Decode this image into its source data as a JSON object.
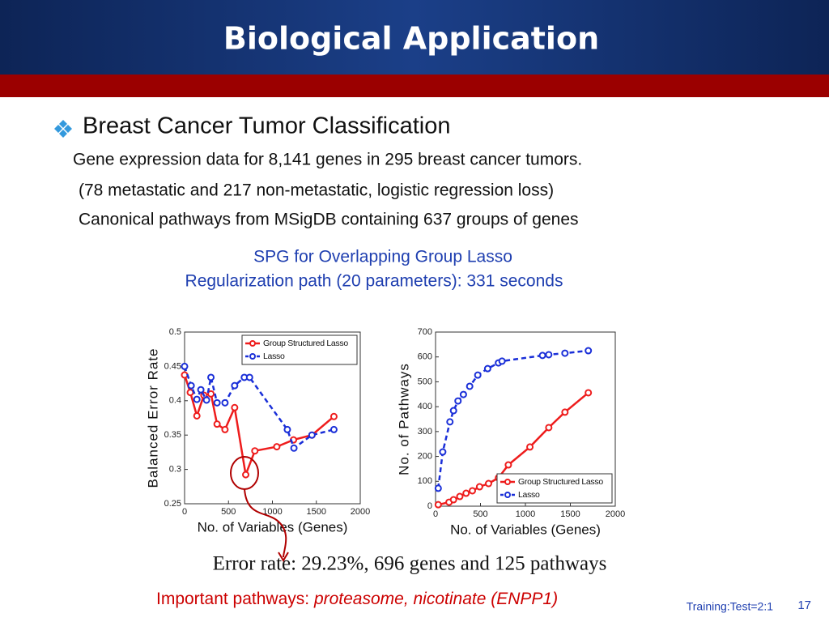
{
  "slide": {
    "title": "Biological Application",
    "bullet": "Breast Cancer Tumor Classification",
    "lines": [
      "Gene expression data for 8,141 genes in 295 breast cancer tumors.",
      "(78 metastatic and 217 non-metastatic, logistic regression loss)",
      "Canonical pathways from MSigDB containing 637 groups of genes"
    ],
    "subheading": [
      "SPG for Overlapping Group Lasso",
      "Regularization path (20 parameters): 331 seconds"
    ],
    "result": "Error rate: 29.23%, 696 genes and 125 pathways",
    "important_label": "Important pathways: ",
    "important_value": "proteasome, nicotinate (ENPP1)",
    "footnote": "Training:Test=2:1",
    "page_number": "17"
  },
  "chart_data": [
    {
      "type": "line",
      "xlabel": "No. of Variables (Genes)",
      "ylabel": "Balanced Error Rate",
      "xlim": [
        0,
        2000
      ],
      "xticks": [
        0,
        500,
        1000,
        1500,
        2000
      ],
      "ylim": [
        0.25,
        0.5
      ],
      "yticks": [
        0.25,
        0.3,
        0.35,
        0.4,
        0.45,
        0.5
      ],
      "legend": "upper right",
      "series": [
        {
          "name": "Group Structured Lasso",
          "color": "#ee1c1c",
          "dashed": false,
          "x": [
            0,
            65,
            140,
            220,
            300,
            370,
            460,
            570,
            696,
            800,
            1050,
            1240,
            1450,
            1700
          ],
          "values": [
            0.4375,
            0.412,
            0.378,
            0.408,
            0.41,
            0.366,
            0.358,
            0.39,
            0.2923,
            0.327,
            0.333,
            0.343,
            0.35,
            0.377
          ]
        },
        {
          "name": "Lasso",
          "color": "#1a2fd8",
          "dashed": true,
          "x": [
            0,
            75,
            140,
            185,
            250,
            300,
            370,
            460,
            570,
            680,
            740,
            1170,
            1245,
            1450,
            1700
          ],
          "values": [
            0.45,
            0.422,
            0.402,
            0.416,
            0.401,
            0.434,
            0.397,
            0.397,
            0.422,
            0.434,
            0.434,
            0.358,
            0.331,
            0.35,
            0.358
          ]
        }
      ]
    },
    {
      "type": "line",
      "xlabel": "No. of Variables (Genes)",
      "ylabel": "No. of Pathways",
      "xlim": [
        0,
        2000
      ],
      "xticks": [
        0,
        500,
        1000,
        1500,
        2000
      ],
      "ylim": [
        0,
        700
      ],
      "yticks": [
        0,
        100,
        200,
        300,
        400,
        500,
        600,
        700
      ],
      "legend": "lower right",
      "series": [
        {
          "name": "Group Structured Lasso",
          "color": "#ee1c1c",
          "dashed": false,
          "x": [
            30,
            150,
            200,
            270,
            340,
            410,
            490,
            590,
            700,
            810,
            1050,
            1260,
            1440,
            1700
          ],
          "values": [
            6,
            16,
            26,
            39,
            52,
            62,
            78,
            91,
            114,
            166,
            238,
            316,
            378,
            456
          ]
        },
        {
          "name": "Lasso",
          "color": "#1a2fd8",
          "dashed": true,
          "x": [
            30,
            80,
            160,
            200,
            250,
            310,
            380,
            470,
            580,
            700,
            740,
            1190,
            1260,
            1440,
            1700
          ],
          "values": [
            72,
            218,
            339,
            384,
            423,
            449,
            482,
            527,
            553,
            576,
            583,
            606,
            609,
            615,
            625
          ]
        }
      ]
    }
  ]
}
